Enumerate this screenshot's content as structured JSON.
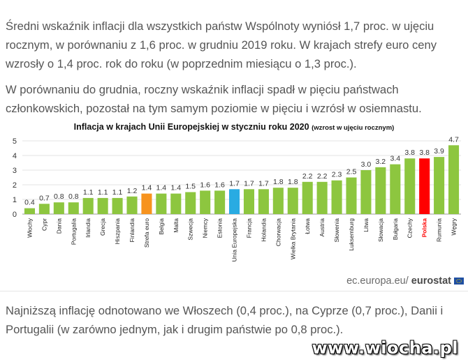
{
  "article": {
    "paragraph1": "Średni wskaźnik inflacji dla wszystkich państw Wspólnoty wyniósł 1,7 proc. w ujęciu rocznym, w porównaniu z 1,6 proc. w grudniu 2019 roku. W krajach strefy euro ceny wzrosły o 1,4 proc. rok do roku (w poprzednim miesiącu o 1,3 proc.).",
    "paragraph2": "W porównaniu do grudnia, roczny wskaźnik inflacji spadł w pięciu państwach członkowskich, pozostał na tym samym poziomie w pięciu i wzrósł w osiemnastu.",
    "paragraph3": "Najniższą inflację odnotowano we Włoszech (0,4 proc.), na Cyprze (0,7 proc.), Danii i Portugalii (w zarówno jednym, jak i drugim państwie po 0,8 proc.)."
  },
  "source": {
    "domain": "ec.europa.eu/",
    "brand": "eurostat"
  },
  "watermark": "www.wiocha.pl",
  "colors": {
    "default": "#8dc63f",
    "euro_area": "#f7931e",
    "eu": "#29abe2",
    "poland": "#ff0000"
  },
  "chart_data": {
    "type": "bar",
    "title": "Inflacja w krajach Unii Europejskiej w styczniu roku 2020",
    "subtitle": "(wzrost w ujęciu rocznym)",
    "categories": [
      "Włochy",
      "Cypr",
      "Dania",
      "Portugalia",
      "Irlandia",
      "Grecja",
      "Hiszpania",
      "Finlandia",
      "Strefa euro",
      "Belgia",
      "Malta",
      "Szwecja",
      "Niemcy",
      "Estonia",
      "Unia Europejska",
      "Francja",
      "Holandia",
      "Chorwacja",
      "Wielka Brytania",
      "Łotwa",
      "Austria",
      "Słowenia",
      "Luksemburg",
      "Litwa",
      "Słowacja",
      "Bułgaria",
      "Czechy",
      "Polska",
      "Rumunia",
      "Węgry"
    ],
    "values": [
      0.4,
      0.7,
      0.8,
      0.8,
      1.1,
      1.1,
      1.1,
      1.2,
      1.4,
      1.4,
      1.4,
      1.5,
      1.6,
      1.6,
      1.7,
      1.7,
      1.7,
      1.8,
      1.8,
      2.2,
      2.2,
      2.3,
      2.5,
      3.0,
      3.2,
      3.4,
      3.8,
      3.8,
      3.9,
      4.7
    ],
    "value_labels": [
      "0.4",
      "0.7",
      "0.8",
      "0.8",
      "1.1",
      "1.1",
      "1.1",
      "1.2",
      "1.4",
      "1.4",
      "1.4",
      "1.5",
      "1.6",
      "1.6",
      "1.7",
      "1.7",
      "1.7",
      "1.8",
      "1.8",
      "2.2",
      "2.2",
      "2.3",
      "2.5",
      "3.0",
      "3.2",
      "3.4",
      "3.8",
      "3.8",
      "3.9",
      "4.7"
    ],
    "highlight": {
      "Strefa euro": "euro_area",
      "Unia Europejska": "eu",
      "Polska": "poland"
    },
    "highlight_label_color": {
      "Polska": "#ff0000"
    },
    "yticks": [
      0,
      1,
      2,
      3,
      4,
      5
    ],
    "ylim": [
      0,
      5
    ],
    "grid": true,
    "legend": "none"
  }
}
